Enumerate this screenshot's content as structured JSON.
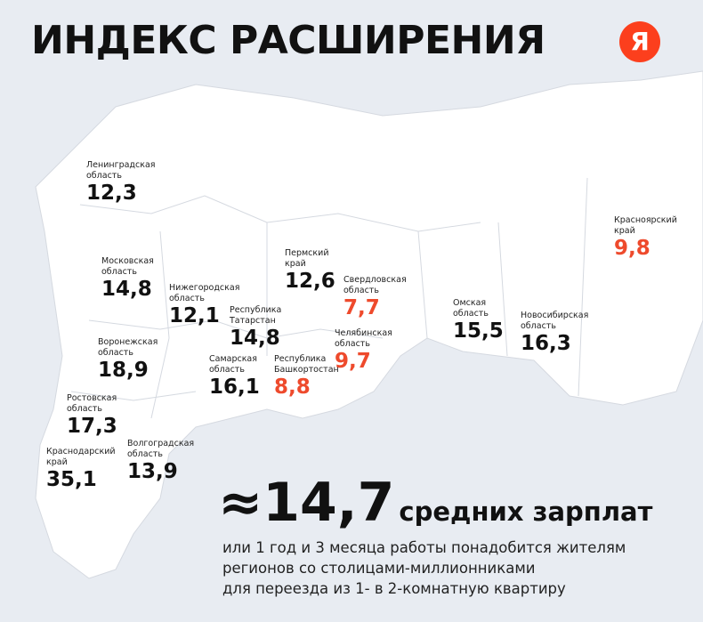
{
  "header": {
    "title": "ИНДЕКС РАСШИРЕНИЯ",
    "logo": "Я"
  },
  "highlight_color": "#ee4a2c",
  "regions": [
    {
      "name_lines": [
        "Ленинградская",
        "область"
      ],
      "value": "12,3",
      "highlight": false
    },
    {
      "name_lines": [
        "Московская",
        "область"
      ],
      "value": "14,8",
      "highlight": false
    },
    {
      "name_lines": [
        "Нижегородская",
        "область"
      ],
      "value": "12,1",
      "highlight": false
    },
    {
      "name_lines": [
        "Пермский",
        "край"
      ],
      "value": "12,6",
      "highlight": false
    },
    {
      "name_lines": [
        "Свердловская",
        "область"
      ],
      "value": "7,7",
      "highlight": true
    },
    {
      "name_lines": [
        "Республика",
        "Татарстан"
      ],
      "value": "14,8",
      "highlight": false
    },
    {
      "name_lines": [
        "Воронежская",
        "область"
      ],
      "value": "18,9",
      "highlight": false
    },
    {
      "name_lines": [
        "Омская",
        "область"
      ],
      "value": "15,5",
      "highlight": false
    },
    {
      "name_lines": [
        "Новосибирская",
        "область"
      ],
      "value": "16,3",
      "highlight": false
    },
    {
      "name_lines": [
        "Красноярский",
        "край"
      ],
      "value": "9,8",
      "highlight": true
    },
    {
      "name_lines": [
        "Челябинская",
        "область"
      ],
      "value": "9,7",
      "highlight": true
    },
    {
      "name_lines": [
        "Самарская",
        "область"
      ],
      "value": "16,1",
      "highlight": false
    },
    {
      "name_lines": [
        "Республика",
        "Башкортостан"
      ],
      "value": "8,8",
      "highlight": true
    },
    {
      "name_lines": [
        "Ростовская",
        "область"
      ],
      "value": "17,3",
      "highlight": false
    },
    {
      "name_lines": [
        "Волгоградская",
        "область"
      ],
      "value": "13,9",
      "highlight": false
    },
    {
      "name_lines": [
        "Краснодарский",
        "край"
      ],
      "value": "35,1",
      "highlight": false
    }
  ],
  "summary": {
    "value": "≈14,7",
    "unit": "средних зарплат",
    "lines": [
      "или 1 год и 3 месяца работы понадобится жителям",
      "регионов со столицами-миллионниками",
      "для переезда из 1- в 2-комнатную квартиру"
    ]
  }
}
